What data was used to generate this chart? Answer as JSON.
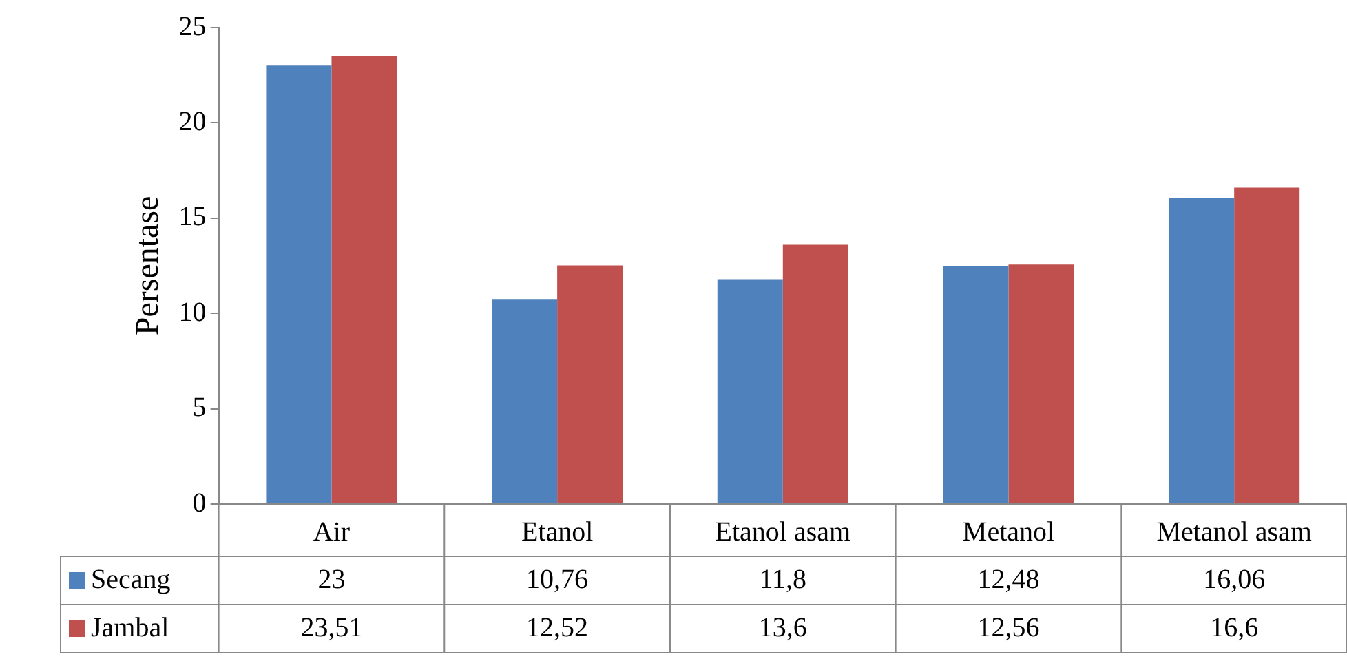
{
  "chart_data": {
    "type": "bar",
    "ylabel": "Persentase",
    "categories": [
      "Air",
      "Etanol",
      "Etanol asam",
      "Metanol",
      "Metanol asam"
    ],
    "series": [
      {
        "name": "Secang",
        "color": "#4f81bd",
        "values": [
          23,
          10.76,
          11.8,
          12.48,
          16.06
        ],
        "value_labels": [
          "23",
          "10,76",
          "11,8",
          "12,48",
          "16,06"
        ]
      },
      {
        "name": "Jambal",
        "color": "#c0504d",
        "values": [
          23.51,
          12.52,
          13.6,
          12.56,
          16.6
        ],
        "value_labels": [
          "23,51",
          "12,52",
          "13,6",
          "12,56",
          "16,6"
        ]
      }
    ],
    "ylim": [
      0,
      25
    ],
    "yticks": [
      0,
      5,
      10,
      15,
      20,
      25
    ],
    "grid": false,
    "legend": "bottom left"
  }
}
